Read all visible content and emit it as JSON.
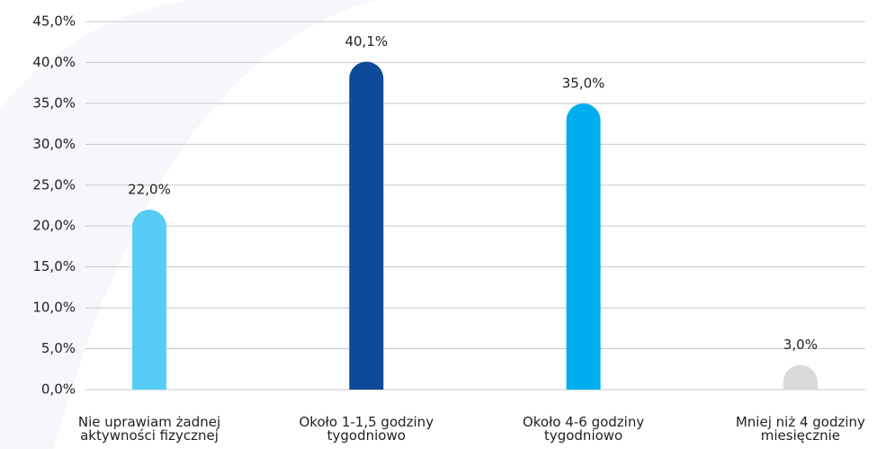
{
  "chart_data": {
    "type": "bar",
    "categories": [
      "Nie uprawiam żadnej\naktywności fizycznej",
      "Około 1-1,5 godziny\ntygodniowo",
      "Około 4-6  godziny\ntygodniowo",
      "Mniej niż 4 godziny\nmiesięcznie"
    ],
    "values": [
      22.0,
      40.1,
      35.0,
      3.0
    ],
    "value_labels": [
      "22,0%",
      "40,1%",
      "35,0%",
      "3,0%"
    ],
    "colors": [
      "#55cdf5",
      "#0d4a99",
      "#00aeef",
      "#d9d9d9"
    ],
    "ylim": [
      0,
      45
    ],
    "yticks": [
      {
        "value": 0,
        "label": "0,0%"
      },
      {
        "value": 5,
        "label": "5,0%"
      },
      {
        "value": 10,
        "label": "10,0%"
      },
      {
        "value": 15,
        "label": "15,0%"
      },
      {
        "value": 20,
        "label": "20,0%"
      },
      {
        "value": 25,
        "label": "25,0%"
      },
      {
        "value": 30,
        "label": "30,0%"
      },
      {
        "value": 35,
        "label": "35,0%"
      },
      {
        "value": 40,
        "label": "40,0%"
      },
      {
        "value": 45,
        "label": "45,0%"
      }
    ],
    "grid": true
  }
}
